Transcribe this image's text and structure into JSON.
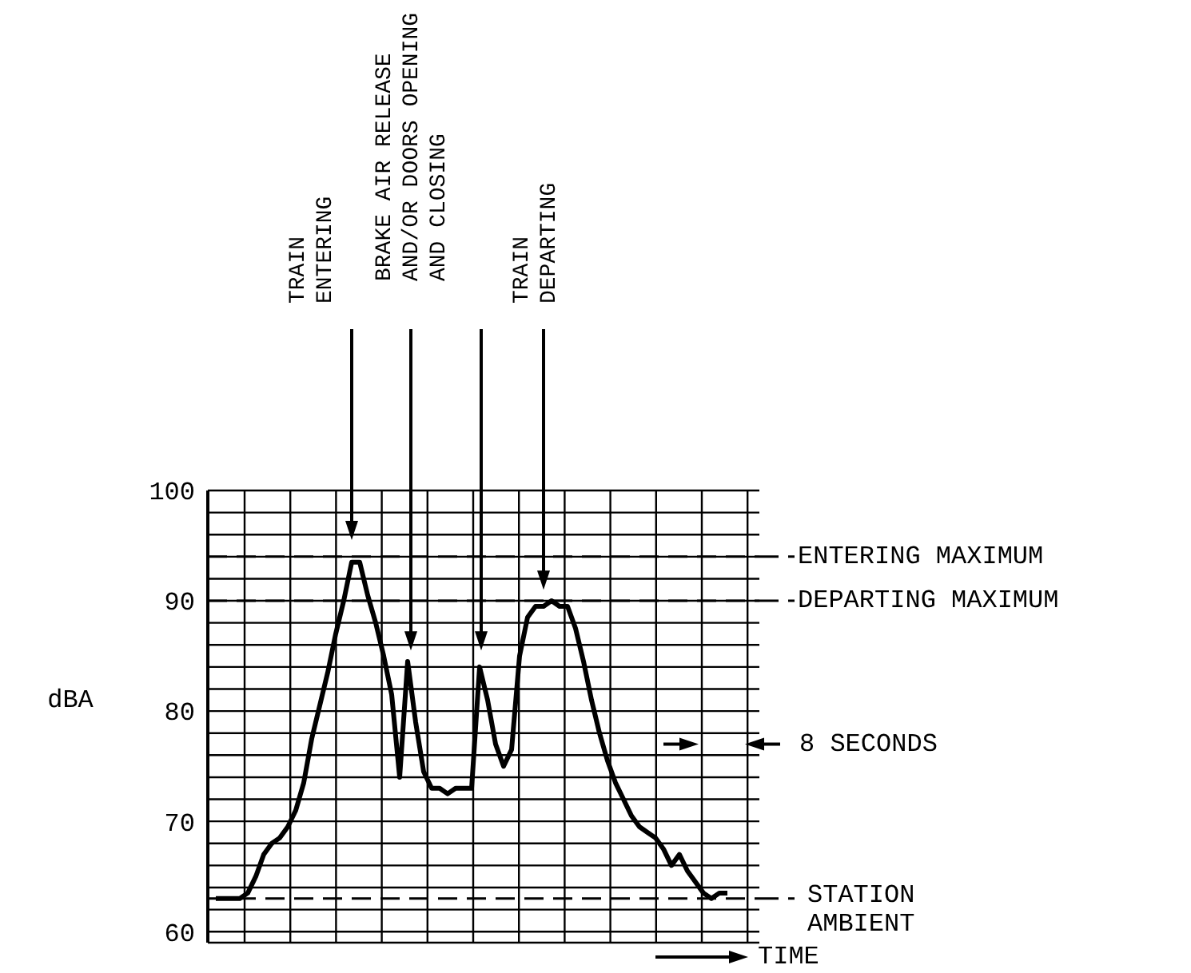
{
  "chart_data": {
    "type": "line",
    "ylabel": "dBA",
    "categories": [
      null,
      null,
      null,
      null,
      null,
      null,
      null,
      null,
      null,
      null,
      null,
      null,
      null,
      null,
      null,
      null,
      null,
      null,
      null,
      null,
      null,
      null,
      null,
      null,
      null,
      null,
      null,
      null,
      null,
      null,
      null,
      null,
      null,
      null,
      null,
      null,
      null,
      null,
      null,
      null,
      null,
      null,
      null,
      null,
      null,
      null,
      null,
      null,
      null,
      null,
      null,
      null,
      null,
      null,
      null,
      null,
      null,
      null,
      null,
      null,
      null,
      null,
      null,
      null,
      null
    ],
    "series": [
      {
        "color": "#000000",
        "values": [
          63,
          63,
          63,
          63,
          63.5,
          65,
          67,
          68,
          68.5,
          69.5,
          71,
          73.5,
          77.5,
          80.5,
          83.5,
          87,
          90,
          93.5,
          93.5,
          90.5,
          88,
          85,
          81.5,
          74,
          84.5,
          79,
          74.5,
          73,
          73,
          72.5,
          73,
          73,
          73,
          84,
          81,
          77,
          75,
          76.5,
          85,
          88.5,
          89.5,
          89.5,
          90,
          89.5,
          89.5,
          87.5,
          84.5,
          81,
          78,
          75.5,
          73.5,
          72,
          70.5,
          69.5,
          69,
          68.5,
          67.5,
          66,
          67,
          65.5,
          64.5,
          63.5,
          63,
          63.5,
          63.5
        ]
      }
    ],
    "ylim": [
      59,
      100
    ],
    "yticks": [
      60,
      {
        "value": 62,
        "label": null
      },
      {
        "value": 64,
        "label": null
      },
      {
        "value": 66,
        "label": null
      },
      {
        "value": 68,
        "label": null
      },
      70,
      {
        "value": 72,
        "label": null
      },
      {
        "value": 74,
        "label": null
      },
      {
        "value": 76,
        "label": null
      },
      {
        "value": 78,
        "label": null
      },
      80,
      {
        "value": 82,
        "label": null
      },
      {
        "value": 84,
        "label": null
      },
      {
        "value": 86,
        "label": null
      },
      {
        "value": 88,
        "label": null
      },
      90,
      {
        "value": 92,
        "label": null
      },
      {
        "value": 94,
        "label": null
      },
      {
        "value": 96,
        "label": null
      },
      {
        "value": 98,
        "label": null
      },
      100
    ],
    "grid": true,
    "marker": "none",
    "line_style": "solid",
    "ref_lines": [
      {
        "axis": "y",
        "value": 94,
        "label": "ENTERING MAXIMUM",
        "line_style": "dashed",
        "color": "#000000"
      },
      {
        "axis": "y",
        "value": 90,
        "label": "DEPARTING MAXIMUM",
        "line_style": "dashed",
        "color": "#000000"
      },
      {
        "axis": "y",
        "value": 63,
        "label": "STATION AMBIENT",
        "line_style": "dashed",
        "color": "#000000"
      }
    ],
    "annotations": [
      "TRAIN ENTERING",
      "BRAKE AIR RELEASE AND/OR DOORS OPENING AND CLOSING",
      "TRAIN DEPARTING",
      "8 SECONDS",
      "TIME"
    ]
  }
}
